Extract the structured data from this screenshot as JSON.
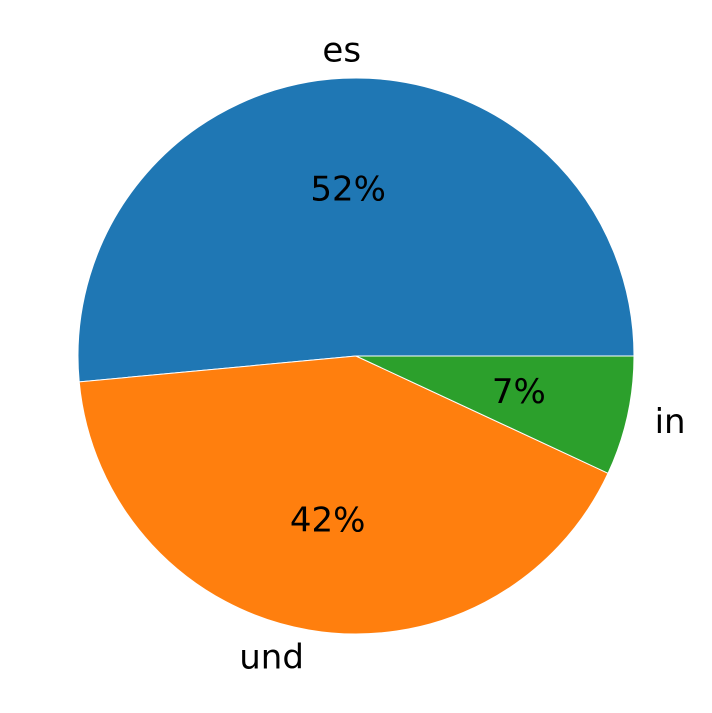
{
  "chart_data": {
    "type": "pie",
    "title": "",
    "slices": [
      {
        "label": "es",
        "value": 52,
        "pct_label": "52%",
        "color": "#1f77b4"
      },
      {
        "label": "und",
        "value": 42,
        "pct_label": "42%",
        "color": "#ff7f0e"
      },
      {
        "label": "in",
        "value": 7,
        "pct_label": "7%",
        "color": "#2ca02c"
      }
    ],
    "start_angle_deg": 0,
    "direction": "counterclockwise"
  }
}
